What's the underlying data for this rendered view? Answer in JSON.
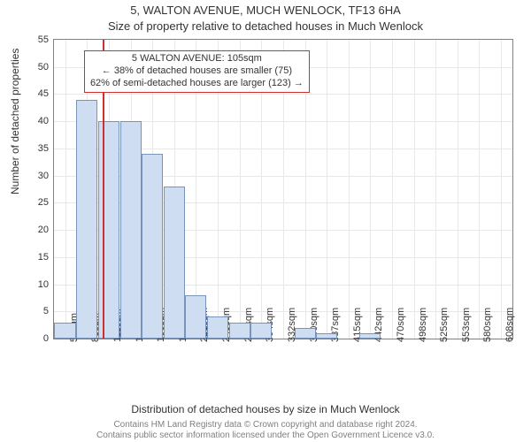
{
  "chart": {
    "type": "histogram",
    "title_main": "5, WALTON AVENUE, MUCH WENLOCK, TF13 6HA",
    "title_sub": "Size of property relative to detached houses in Much Wenlock",
    "y_label": "Number of detached properties",
    "x_label": "Distribution of detached houses by size in Much Wenlock",
    "footer_line1": "Contains HM Land Registry data © Crown copyright and database right 2024.",
    "footer_line2": "Contains public sector information licensed under the Open Government Licence v3.0.",
    "title_fontsize": 13,
    "label_fontsize": 12,
    "tick_fontsize": 11,
    "footer_fontsize": 10,
    "background_color": "#ffffff",
    "axis_color": "#808080",
    "grid_color": "#e8e8e8",
    "text_color": "#333333",
    "footer_color": "#808080",
    "bar_fill": "#cfddf2",
    "bar_border": "#7a93b8",
    "marker_color": "#cc3030",
    "annot_border": "#cc3030",
    "ylim": [
      0,
      55
    ],
    "ytick_step": 5,
    "yticks": [
      0,
      5,
      10,
      15,
      20,
      25,
      30,
      35,
      40,
      45,
      50,
      55
    ],
    "xlim_sqm": [
      42,
      622
    ],
    "x_categories": [
      "56sqm",
      "83sqm",
      "111sqm",
      "139sqm",
      "166sqm",
      "194sqm",
      "221sqm",
      "249sqm",
      "277sqm",
      "304sqm",
      "332sqm",
      "360sqm",
      "387sqm",
      "415sqm",
      "442sqm",
      "470sqm",
      "498sqm",
      "525sqm",
      "553sqm",
      "580sqm",
      "608sqm"
    ],
    "x_tick_sqm": [
      56,
      83,
      111,
      139,
      166,
      194,
      221,
      249,
      277,
      304,
      332,
      360,
      387,
      415,
      442,
      470,
      498,
      525,
      553,
      580,
      608
    ],
    "bars": [
      {
        "x_center_sqm": 56,
        "value": 3
      },
      {
        "x_center_sqm": 83,
        "value": 44
      },
      {
        "x_center_sqm": 111,
        "value": 40
      },
      {
        "x_center_sqm": 139,
        "value": 40
      },
      {
        "x_center_sqm": 166,
        "value": 34
      },
      {
        "x_center_sqm": 194,
        "value": 28
      },
      {
        "x_center_sqm": 221,
        "value": 8
      },
      {
        "x_center_sqm": 249,
        "value": 4
      },
      {
        "x_center_sqm": 277,
        "value": 3
      },
      {
        "x_center_sqm": 304,
        "value": 3
      },
      {
        "x_center_sqm": 332,
        "value": 0
      },
      {
        "x_center_sqm": 360,
        "value": 2
      },
      {
        "x_center_sqm": 387,
        "value": 1
      },
      {
        "x_center_sqm": 415,
        "value": 0
      },
      {
        "x_center_sqm": 442,
        "value": 1
      },
      {
        "x_center_sqm": 470,
        "value": 0
      },
      {
        "x_center_sqm": 498,
        "value": 0
      },
      {
        "x_center_sqm": 525,
        "value": 0
      },
      {
        "x_center_sqm": 553,
        "value": 0
      },
      {
        "x_center_sqm": 580,
        "value": 0
      },
      {
        "x_center_sqm": 608,
        "value": 0
      }
    ],
    "bar_width_sqm": 27,
    "marker_sqm": 105,
    "annotation": {
      "lines": [
        "5 WALTON AVENUE: 105sqm",
        "← 38% of detached houses are smaller (75)",
        "62% of semi-detached houses are larger (123) →"
      ],
      "left_sqm": 80,
      "top_value": 53
    }
  }
}
